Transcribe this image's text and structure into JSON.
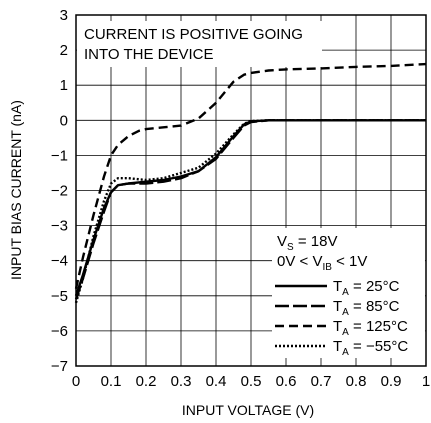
{
  "chart_data": {
    "type": "line",
    "xlabel": "INPUT VOLTAGE (V)",
    "ylabel": "INPUT BIAS CURRENT (nA)",
    "xlim": [
      0,
      1
    ],
    "ylim": [
      -7,
      3
    ],
    "x_ticks": [
      "0",
      "0.1",
      "0.2",
      "0.3",
      "0.4",
      "0.5",
      "0.6",
      "0.7",
      "0.8",
      "0.9",
      "1"
    ],
    "y_ticks": [
      "3",
      "2",
      "1",
      "0",
      "−1",
      "−2",
      "−3",
      "−4",
      "−5",
      "−6",
      "−7"
    ],
    "grid": true,
    "annotation": [
      "CURRENT IS POSITIVE GOING",
      "INTO THE DEVICE"
    ],
    "conditions": [
      {
        "main": "V",
        "sub": "S",
        "rest": " = 18V"
      },
      {
        "pre": "0V < V",
        "sub": "IB",
        "rest": " < 1V"
      }
    ],
    "legend_placement": "bottom-right",
    "series": [
      {
        "name_main": "T",
        "name_sub": "A",
        "name_rest": " = 25°C",
        "style": "solid",
        "x": [
          0,
          0.02,
          0.05,
          0.08,
          0.1,
          0.12,
          0.15,
          0.2,
          0.25,
          0.3,
          0.35,
          0.4,
          0.45,
          0.48,
          0.5,
          0.55,
          0.6,
          0.7,
          0.8,
          0.9,
          1.0
        ],
        "y": [
          -5.0,
          -4.4,
          -3.4,
          -2.5,
          -2.05,
          -1.85,
          -1.8,
          -1.75,
          -1.7,
          -1.6,
          -1.45,
          -1.05,
          -0.45,
          -0.12,
          -0.03,
          0,
          0,
          0,
          0,
          0,
          0
        ]
      },
      {
        "name_main": "T",
        "name_sub": "A",
        "name_rest": " = 85°C",
        "style": "long-dash",
        "x": [
          0,
          0.02,
          0.05,
          0.08,
          0.1,
          0.12,
          0.15,
          0.2,
          0.25,
          0.3,
          0.35,
          0.4,
          0.45,
          0.48,
          0.5,
          0.55,
          0.6,
          0.7,
          0.8,
          0.9,
          1.0
        ],
        "y": [
          -5.1,
          -4.5,
          -3.5,
          -2.6,
          -2.05,
          -1.85,
          -1.8,
          -1.8,
          -1.75,
          -1.65,
          -1.45,
          -1.1,
          -0.5,
          -0.15,
          -0.05,
          0,
          0,
          0,
          0,
          0,
          0
        ]
      },
      {
        "name_main": "T",
        "name_sub": "A",
        "name_rest": " = 125°C",
        "style": "dash",
        "x": [
          0,
          0.02,
          0.05,
          0.08,
          0.1,
          0.12,
          0.15,
          0.18,
          0.2,
          0.25,
          0.3,
          0.35,
          0.4,
          0.45,
          0.48,
          0.5,
          0.55,
          0.6,
          0.7,
          0.8,
          0.9,
          1.0
        ],
        "y": [
          -4.8,
          -3.9,
          -2.7,
          -1.6,
          -1.0,
          -0.7,
          -0.45,
          -0.3,
          -0.25,
          -0.2,
          -0.15,
          0.05,
          0.5,
          1.1,
          1.3,
          1.35,
          1.42,
          1.45,
          1.48,
          1.52,
          1.55,
          1.6
        ]
      },
      {
        "name_main": "T",
        "name_sub": "A",
        "name_rest": " = −55°C",
        "style": "dotted",
        "x": [
          0,
          0.02,
          0.05,
          0.08,
          0.1,
          0.12,
          0.15,
          0.2,
          0.25,
          0.3,
          0.35,
          0.4,
          0.45,
          0.48,
          0.5,
          0.55,
          0.6,
          0.7,
          0.8,
          0.9,
          1.0
        ],
        "y": [
          -5.2,
          -4.5,
          -3.3,
          -2.3,
          -1.8,
          -1.65,
          -1.65,
          -1.7,
          -1.65,
          -1.5,
          -1.35,
          -0.95,
          -0.4,
          -0.1,
          -0.02,
          0,
          0,
          0,
          0,
          0,
          0
        ]
      }
    ]
  }
}
